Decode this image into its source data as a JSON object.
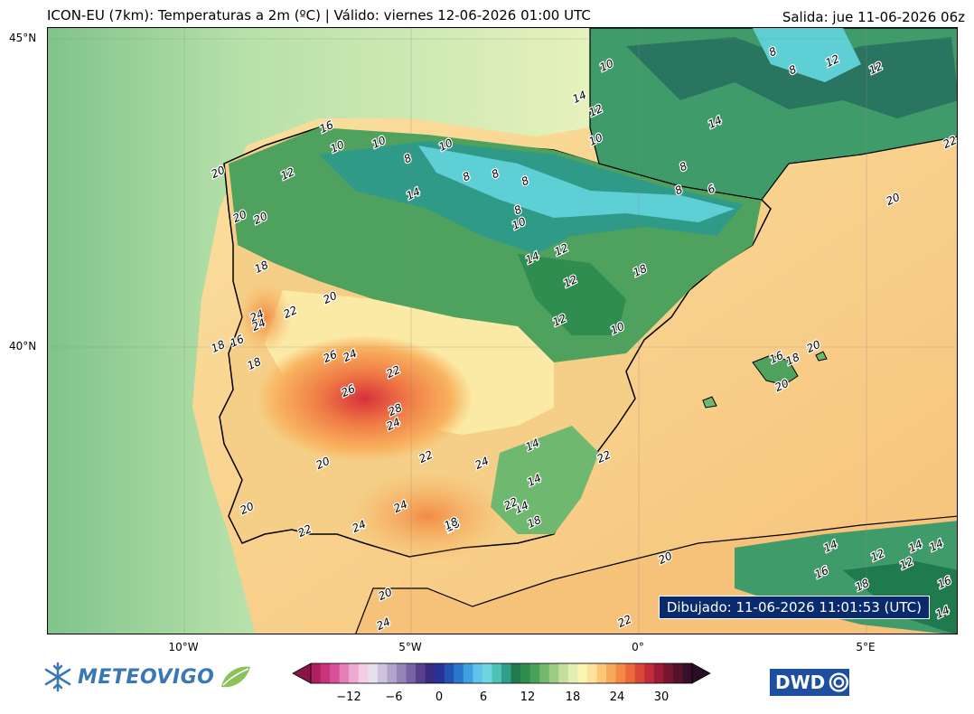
{
  "header": {
    "title": "ICON-EU (7km): Temperaturas a 2m (ºC) | Válido: viernes 12-06-2026 01:00 UTC",
    "run": "Salida: jue 11-06-2026 06z"
  },
  "map": {
    "lat_labels": [
      "45°N",
      "40°N"
    ],
    "lon_labels": [
      "10°W",
      "5°W",
      "0°",
      "5°E"
    ],
    "drawn_stamp": "Dibujado: 11-06-2026 11:01:53 (UTC)",
    "contour_labels": [
      "16",
      "10",
      "10",
      "8",
      "10",
      "8",
      "8",
      "8",
      "8",
      "10",
      "8",
      "6",
      "8",
      "12",
      "14",
      "20",
      "20",
      "20",
      "18",
      "24",
      "22",
      "20",
      "18",
      "16",
      "18",
      "24",
      "26",
      "24",
      "22",
      "26",
      "28",
      "24",
      "20",
      "22",
      "24",
      "24",
      "20",
      "22",
      "24",
      "24",
      "22",
      "18",
      "14",
      "14",
      "14",
      "22",
      "18",
      "12",
      "12",
      "12",
      "14",
      "14",
      "10",
      "12",
      "14",
      "10",
      "8",
      "8",
      "10",
      "12",
      "12",
      "20",
      "16",
      "18",
      "20",
      "20",
      "20",
      "14",
      "14",
      "12",
      "12",
      "14",
      "16",
      "16",
      "18",
      "22",
      "20",
      "24",
      "18",
      "18",
      "14",
      "22"
    ],
    "palette": {
      "sea_west": "#b8e2ad",
      "sea_east": "#f7c97f",
      "warm_land": "#f6cf88",
      "hot": "#e04a3a",
      "cool": "#2e8a4e",
      "cold": "#3ec1c0"
    }
  },
  "colorbar": {
    "ticks": [
      "−12",
      "−6",
      "0",
      "6",
      "12",
      "18",
      "24",
      "30"
    ],
    "colors": [
      "#b01e62",
      "#c8347a",
      "#d8519a",
      "#e57fb7",
      "#efaad2",
      "#f4cde5",
      "#e6e0ee",
      "#cdc3de",
      "#b3a4cc",
      "#9584b8",
      "#7763a3",
      "#5a3f8e",
      "#3a2b82",
      "#28339a",
      "#2552b5",
      "#2a78cc",
      "#3ea0de",
      "#5ec2ea",
      "#6fd6df",
      "#4cc2b6",
      "#2f9f8a",
      "#1f7a4e",
      "#2f8d4f",
      "#4aa25a",
      "#73b86d",
      "#9ccc84",
      "#c4dfa0",
      "#e3eeb5",
      "#fbf3b0",
      "#fde39a",
      "#fbc877",
      "#f8a85b",
      "#f48946",
      "#ea6a3a",
      "#d8473a",
      "#c02d3b",
      "#9c1d35",
      "#7a1530",
      "#56112b",
      "#36102a"
    ],
    "min_color": "#8a1447",
    "max_color": "#2a0e25"
  },
  "branding": {
    "left_name": "METEOVIGO",
    "right_name": "DWD"
  }
}
